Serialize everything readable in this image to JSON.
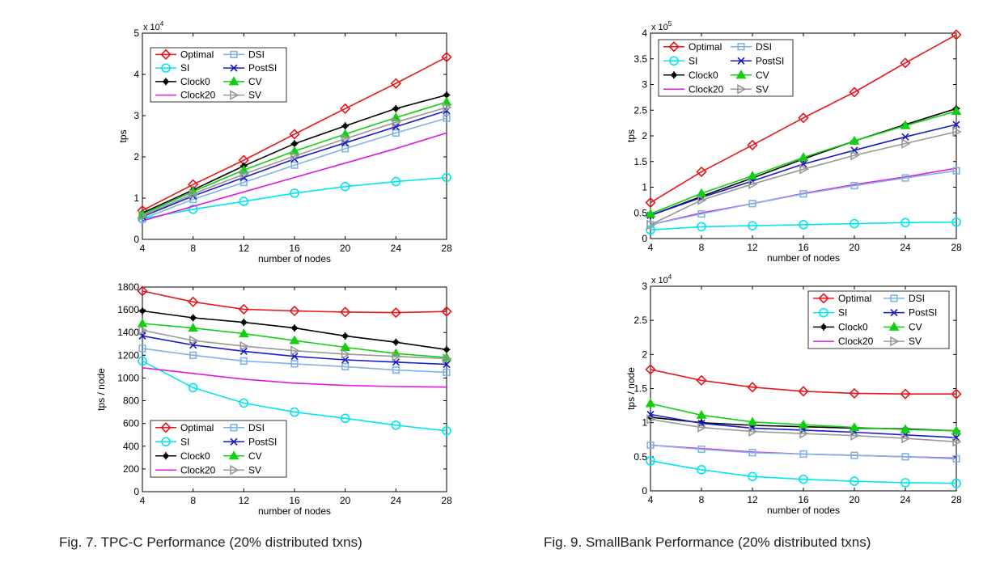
{
  "captions": {
    "left": "Fig. 7. TPC-C Performance (20% distributed txns)",
    "right": "Fig. 9. SmallBank Performance (20% distributed txns)"
  },
  "series_style": {
    "Optimal": {
      "color": "#e8151b",
      "marker": "diamond"
    },
    "SI": {
      "color": "#00e5ee",
      "marker": "circle"
    },
    "Clock0": {
      "color": "#000000",
      "marker": "asterisk"
    },
    "Clock20": {
      "color": "#e019e0",
      "marker": "none"
    },
    "DSI": {
      "color": "#7fb2e5",
      "marker": "square"
    },
    "PostSI": {
      "color": "#1a1acc",
      "marker": "x"
    },
    "CV": {
      "color": "#10d010",
      "marker": "triangle-up"
    },
    "SV": {
      "color": "#999999",
      "marker": "triangle-right"
    }
  },
  "chart_data": [
    {
      "type": "line",
      "name": "tpcc-tps",
      "xlabel": "number of nodes",
      "ylabel": "tps",
      "exponent_label": "x 10",
      "exponent_power": "4",
      "x": [
        4,
        8,
        12,
        16,
        20,
        24,
        28
      ],
      "xlim": [
        4,
        28
      ],
      "ylim": [
        0,
        5
      ],
      "xticks": [
        "4",
        "8",
        "12",
        "16",
        "20",
        "24",
        "28"
      ],
      "yticks": [
        "0",
        "1",
        "2",
        "3",
        "4",
        "5"
      ],
      "legend_position": "top-left",
      "legend_order": [
        "Optimal",
        "DSI",
        "SI",
        "PostSI",
        "Clock0",
        "CV",
        "Clock20",
        "SV"
      ],
      "series": [
        {
          "name": "Optimal",
          "values": [
            0.7,
            1.33,
            1.92,
            2.55,
            3.17,
            3.78,
            4.42
          ]
        },
        {
          "name": "SI",
          "values": [
            0.5,
            0.73,
            0.92,
            1.12,
            1.28,
            1.4,
            1.5
          ]
        },
        {
          "name": "Clock0",
          "values": [
            0.64,
            1.2,
            1.78,
            2.32,
            2.75,
            3.17,
            3.5
          ]
        },
        {
          "name": "Clock20",
          "values": [
            0.45,
            0.8,
            1.15,
            1.5,
            1.85,
            2.2,
            2.58
          ]
        },
        {
          "name": "DSI",
          "values": [
            0.5,
            0.97,
            1.38,
            1.8,
            2.2,
            2.58,
            2.94
          ]
        },
        {
          "name": "PostSI",
          "values": [
            0.55,
            1.05,
            1.5,
            1.95,
            2.34,
            2.73,
            3.12
          ]
        },
        {
          "name": "CV",
          "values": [
            0.6,
            1.16,
            1.68,
            2.14,
            2.55,
            2.95,
            3.33
          ]
        },
        {
          "name": "SV",
          "values": [
            0.57,
            1.1,
            1.58,
            2.02,
            2.44,
            2.84,
            3.2
          ]
        }
      ]
    },
    {
      "type": "line",
      "name": "tpcc-per-node",
      "xlabel": "number of nodes",
      "ylabel": "tps / node",
      "x": [
        4,
        8,
        12,
        16,
        20,
        24,
        28
      ],
      "xlim": [
        4,
        28
      ],
      "ylim": [
        0,
        1800
      ],
      "xticks": [
        "4",
        "8",
        "12",
        "16",
        "20",
        "24",
        "28"
      ],
      "yticks": [
        "0",
        "200",
        "400",
        "600",
        "800",
        "1000",
        "1200",
        "1400",
        "1600",
        "1800"
      ],
      "legend_position": "bottom-left",
      "legend_order": [
        "Optimal",
        "DSI",
        "SI",
        "PostSI",
        "Clock0",
        "CV",
        "Clock20",
        "SV"
      ],
      "series": [
        {
          "name": "Optimal",
          "values": [
            1765,
            1670,
            1605,
            1590,
            1580,
            1575,
            1585
          ]
        },
        {
          "name": "SI",
          "values": [
            1150,
            915,
            780,
            700,
            645,
            585,
            535
          ]
        },
        {
          "name": "Clock0",
          "values": [
            1590,
            1530,
            1490,
            1440,
            1370,
            1315,
            1250
          ]
        },
        {
          "name": "Clock20",
          "values": [
            1090,
            1040,
            990,
            955,
            935,
            925,
            920
          ]
        },
        {
          "name": "DSI",
          "values": [
            1260,
            1200,
            1150,
            1125,
            1100,
            1070,
            1050
          ]
        },
        {
          "name": "PostSI",
          "values": [
            1370,
            1290,
            1235,
            1190,
            1160,
            1140,
            1120
          ]
        },
        {
          "name": "CV",
          "values": [
            1480,
            1440,
            1390,
            1330,
            1270,
            1215,
            1180
          ]
        },
        {
          "name": "SV",
          "values": [
            1420,
            1330,
            1280,
            1240,
            1210,
            1190,
            1170
          ]
        }
      ]
    },
    {
      "type": "line",
      "name": "smallbank-tps",
      "xlabel": "number of nodes",
      "ylabel": "tps",
      "exponent_label": "x 10",
      "exponent_power": "5",
      "x": [
        4,
        8,
        12,
        16,
        20,
        24,
        28
      ],
      "xlim": [
        4,
        28
      ],
      "ylim": [
        0,
        4
      ],
      "xticks": [
        "4",
        "8",
        "12",
        "16",
        "20",
        "24",
        "28"
      ],
      "yticks": [
        "0",
        "0.5",
        "1",
        "1.5",
        "2",
        "2.5",
        "3",
        "3.5",
        "4"
      ],
      "legend_position": "top-left",
      "legend_order": [
        "Optimal",
        "DSI",
        "SI",
        "PostSI",
        "Clock0",
        "CV",
        "Clock20",
        "SV"
      ],
      "series": [
        {
          "name": "Optimal",
          "values": [
            0.7,
            1.3,
            1.82,
            2.35,
            2.85,
            3.42,
            3.97
          ]
        },
        {
          "name": "SI",
          "values": [
            0.17,
            0.23,
            0.25,
            0.27,
            0.29,
            0.31,
            0.32
          ]
        },
        {
          "name": "Clock0",
          "values": [
            0.45,
            0.82,
            1.18,
            1.55,
            1.9,
            2.22,
            2.53
          ]
        },
        {
          "name": "Clock20",
          "values": [
            0.27,
            0.5,
            0.68,
            0.88,
            1.05,
            1.2,
            1.37
          ]
        },
        {
          "name": "DSI",
          "values": [
            0.27,
            0.48,
            0.68,
            0.87,
            1.03,
            1.18,
            1.32
          ]
        },
        {
          "name": "PostSI",
          "values": [
            0.45,
            0.8,
            1.12,
            1.45,
            1.72,
            1.98,
            2.22
          ]
        },
        {
          "name": "CV",
          "values": [
            0.48,
            0.88,
            1.22,
            1.58,
            1.9,
            2.2,
            2.48
          ]
        },
        {
          "name": "SV",
          "values": [
            0.27,
            0.75,
            1.06,
            1.35,
            1.62,
            1.85,
            2.08
          ]
        }
      ]
    },
    {
      "type": "line",
      "name": "smallbank-per-node",
      "xlabel": "number of nodes",
      "ylabel": "tps / node",
      "exponent_label": "x 10",
      "exponent_power": "4",
      "x": [
        4,
        8,
        12,
        16,
        20,
        24,
        28
      ],
      "xlim": [
        4,
        28
      ],
      "ylim": [
        0,
        3
      ],
      "xticks": [
        "4",
        "8",
        "12",
        "16",
        "20",
        "24",
        "28"
      ],
      "yticks": [
        "0",
        "0.5",
        "1",
        "1.5",
        "2",
        "2.5",
        "3"
      ],
      "legend_position": "top-right",
      "legend_order": [
        "Optimal",
        "DSI",
        "SI",
        "PostSI",
        "Clock0",
        "CV",
        "Clock20",
        "SV"
      ],
      "series": [
        {
          "name": "Optimal",
          "values": [
            1.78,
            1.62,
            1.52,
            1.46,
            1.43,
            1.42,
            1.42
          ]
        },
        {
          "name": "SI",
          "values": [
            0.44,
            0.31,
            0.21,
            0.17,
            0.14,
            0.12,
            0.11
          ]
        },
        {
          "name": "Clock0",
          "values": [
            1.08,
            1.0,
            0.96,
            0.94,
            0.92,
            0.91,
            0.88
          ]
        },
        {
          "name": "Clock20",
          "values": [
            0.67,
            0.62,
            0.57,
            0.54,
            0.52,
            0.5,
            0.48
          ]
        },
        {
          "name": "DSI",
          "values": [
            0.67,
            0.61,
            0.56,
            0.54,
            0.52,
            0.5,
            0.47
          ]
        },
        {
          "name": "PostSI",
          "values": [
            1.12,
            0.99,
            0.92,
            0.89,
            0.86,
            0.82,
            0.78
          ]
        },
        {
          "name": "CV",
          "values": [
            1.28,
            1.11,
            1.01,
            0.97,
            0.93,
            0.9,
            0.88
          ]
        },
        {
          "name": "SV",
          "values": [
            1.05,
            0.93,
            0.87,
            0.84,
            0.81,
            0.77,
            0.72
          ]
        }
      ]
    }
  ]
}
